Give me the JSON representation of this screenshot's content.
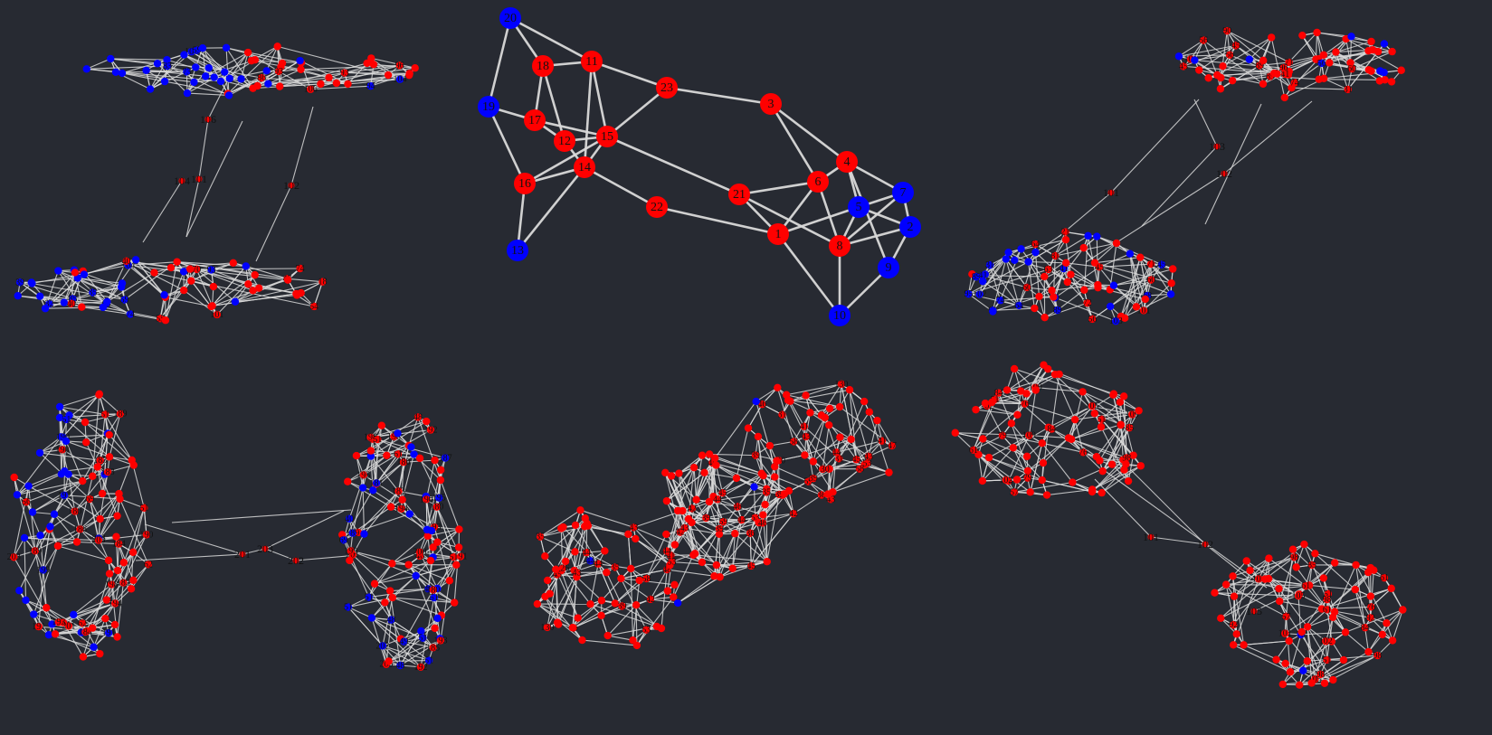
{
  "colors": {
    "background": "#272a32",
    "edge": "#d9d9d9",
    "red": "#ff0000",
    "blue": "#0000ff",
    "label": "#111111"
  },
  "main_graph": {
    "nodes": [
      {
        "id": "20",
        "color": "blue"
      },
      {
        "id": "19",
        "color": "blue"
      },
      {
        "id": "13",
        "color": "blue"
      },
      {
        "id": "18",
        "color": "red"
      },
      {
        "id": "11",
        "color": "red"
      },
      {
        "id": "17",
        "color": "red"
      },
      {
        "id": "12",
        "color": "red"
      },
      {
        "id": "15",
        "color": "red"
      },
      {
        "id": "14",
        "color": "red"
      },
      {
        "id": "16",
        "color": "red"
      },
      {
        "id": "22",
        "color": "red"
      },
      {
        "id": "23",
        "color": "red"
      },
      {
        "id": "3",
        "color": "red"
      },
      {
        "id": "4",
        "color": "red"
      },
      {
        "id": "6",
        "color": "red"
      },
      {
        "id": "21",
        "color": "red"
      },
      {
        "id": "1",
        "color": "red"
      },
      {
        "id": "8",
        "color": "red"
      },
      {
        "id": "5",
        "color": "blue"
      },
      {
        "id": "7",
        "color": "blue"
      },
      {
        "id": "2",
        "color": "blue"
      },
      {
        "id": "9",
        "color": "blue"
      },
      {
        "id": "10",
        "color": "blue"
      }
    ],
    "edges": [
      [
        "20",
        "18"
      ],
      [
        "20",
        "19"
      ],
      [
        "20",
        "11"
      ],
      [
        "18",
        "17"
      ],
      [
        "18",
        "11"
      ],
      [
        "18",
        "12"
      ],
      [
        "11",
        "23"
      ],
      [
        "11",
        "14"
      ],
      [
        "11",
        "15"
      ],
      [
        "19",
        "17"
      ],
      [
        "19",
        "16"
      ],
      [
        "17",
        "15"
      ],
      [
        "17",
        "12"
      ],
      [
        "12",
        "15"
      ],
      [
        "12",
        "14"
      ],
      [
        "15",
        "14"
      ],
      [
        "15",
        "16"
      ],
      [
        "15",
        "23"
      ],
      [
        "15",
        "21"
      ],
      [
        "14",
        "16"
      ],
      [
        "14",
        "22"
      ],
      [
        "14",
        "13"
      ],
      [
        "16",
        "13"
      ],
      [
        "22",
        "1"
      ],
      [
        "23",
        "3"
      ],
      [
        "3",
        "4"
      ],
      [
        "3",
        "6"
      ],
      [
        "4",
        "6"
      ],
      [
        "4",
        "5"
      ],
      [
        "4",
        "7"
      ],
      [
        "4",
        "9"
      ],
      [
        "6",
        "21"
      ],
      [
        "6",
        "8"
      ],
      [
        "6",
        "1"
      ],
      [
        "21",
        "1"
      ],
      [
        "21",
        "8"
      ],
      [
        "1",
        "10"
      ],
      [
        "1",
        "5"
      ],
      [
        "8",
        "10"
      ],
      [
        "8",
        "5"
      ],
      [
        "5",
        "7"
      ],
      [
        "5",
        "2"
      ],
      [
        "7",
        "2"
      ],
      [
        "7",
        "8"
      ],
      [
        "2",
        "9"
      ],
      [
        "9",
        "10"
      ],
      [
        "2",
        "8"
      ]
    ]
  },
  "graphs": [
    {
      "name": "graph-top-left",
      "labels": [
        "32",
        "55",
        "38",
        "71",
        "93",
        "85",
        "69",
        "94",
        "96",
        "59",
        "54",
        "74",
        "70",
        "106",
        "104",
        "101",
        "102",
        "45",
        "39",
        "18",
        "11",
        "76",
        "83",
        "25",
        "35",
        "22",
        "73",
        "86",
        "47",
        "40",
        "61"
      ],
      "bridge_labels": [
        "106",
        "104",
        "101",
        "102"
      ]
    },
    {
      "name": "graph-top-right",
      "labels": [
        "103",
        "102",
        "101",
        "56",
        "83",
        "95",
        "90",
        "71",
        "57",
        "64",
        "81",
        "96",
        "89",
        "63",
        "41",
        "74",
        "72",
        "68",
        "31",
        "49",
        "45",
        "60",
        "21",
        "40"
      ],
      "bridge_labels": [
        "103",
        "102",
        "101"
      ]
    },
    {
      "name": "graph-bottom-left",
      "labels": [
        "194",
        "192",
        "184",
        "187",
        "182",
        "195",
        "186",
        "185",
        "201",
        "203",
        "202",
        "191",
        "190",
        "198",
        "193",
        "189",
        "181",
        "180",
        "200",
        "183",
        "199",
        "51",
        "56",
        "61",
        "69",
        "46",
        "62",
        "49",
        "48",
        "40"
      ],
      "bridge_labels": [
        "201",
        "203",
        "202"
      ]
    },
    {
      "name": "graph-bottom-middle",
      "labels": [
        "126",
        "130",
        "53",
        "58",
        "59",
        "43",
        "45",
        "44",
        "46",
        "48",
        "35",
        "39",
        "31",
        "36",
        "42",
        "47",
        "41"
      ],
      "bridge_labels": []
    },
    {
      "name": "graph-bottom-right",
      "labels": [
        "98",
        "92",
        "101",
        "109",
        "102",
        "105",
        "84",
        "76",
        "51",
        "85",
        "61",
        "98",
        "46",
        "79",
        "57"
      ],
      "bridge_labels": [
        "101",
        "102",
        "105"
      ]
    }
  ]
}
